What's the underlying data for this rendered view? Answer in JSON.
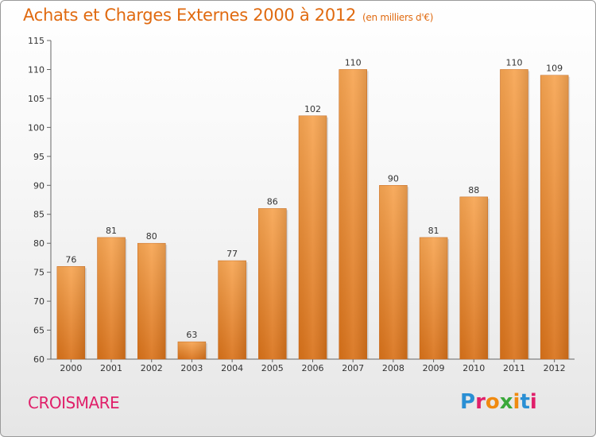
{
  "header": {
    "title": "Achats et Charges Externes 2000 à 2012",
    "subtitle": "(en milliers d'€)"
  },
  "footer": {
    "city": "CROISMARE",
    "logo_letters": [
      "P",
      "r",
      "o",
      "x",
      "i",
      "t",
      "i"
    ],
    "logo_colors": [
      "#2a8fd4",
      "#e0206a",
      "#f08a10",
      "#3aa83a",
      "#f08a10",
      "#2a8fd4",
      "#e0206a"
    ]
  },
  "chart_data": {
    "type": "bar",
    "categories": [
      "2000",
      "2001",
      "2002",
      "2003",
      "2004",
      "2005",
      "2006",
      "2007",
      "2008",
      "2009",
      "2010",
      "2011",
      "2012"
    ],
    "values": [
      76,
      81,
      80,
      63,
      77,
      86,
      102,
      110,
      90,
      81,
      88,
      110,
      109
    ],
    "title": "Achats et Charges Externes 2000 à 2012",
    "ylim": [
      60,
      115
    ],
    "yticks": [
      60,
      65,
      70,
      75,
      80,
      85,
      90,
      95,
      100,
      105,
      110,
      115
    ],
    "grid": false,
    "bar_color": "#f0892a"
  }
}
